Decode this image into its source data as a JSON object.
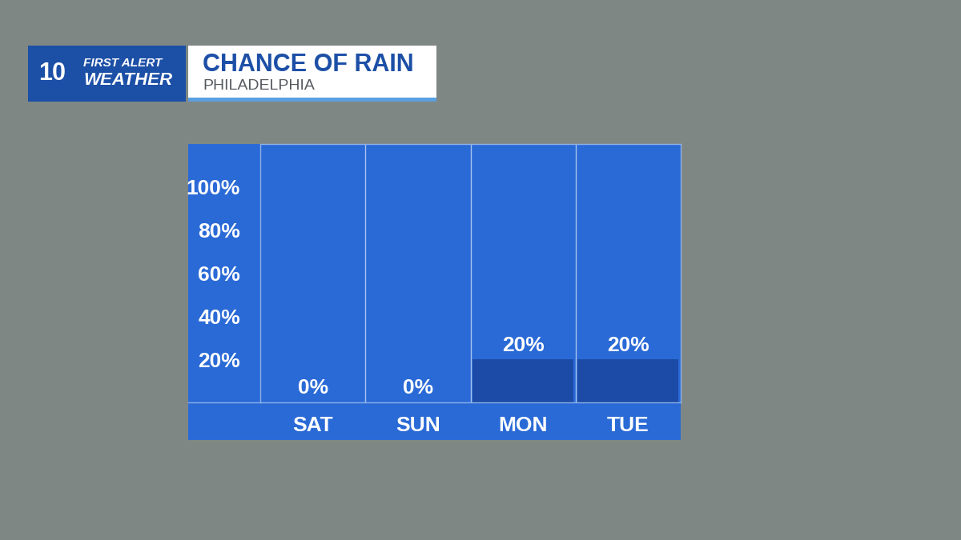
{
  "logo": {
    "channel": "10",
    "lines": [
      "FIRST ALERT",
      "WEATHER"
    ]
  },
  "chart_data": {
    "type": "bar",
    "title": "CHANCE OF RAIN",
    "subtitle": "PHILADELPHIA",
    "categories": [
      "SAT",
      "SUN",
      "MON",
      "TUE"
    ],
    "values": [
      0,
      0,
      20,
      20
    ],
    "value_labels": [
      "0%",
      "0%",
      "20%",
      "20%"
    ],
    "data_labels": true,
    "color": "#1b4ba6",
    "ylim": [
      0,
      120
    ],
    "yticks": [
      {
        "value": 20,
        "label": "20%"
      },
      {
        "value": 40,
        "label": "40%"
      },
      {
        "value": 60,
        "label": "60%"
      },
      {
        "value": 80,
        "label": "80%"
      },
      {
        "value": 100,
        "label": "100%"
      }
    ],
    "grid": false
  }
}
